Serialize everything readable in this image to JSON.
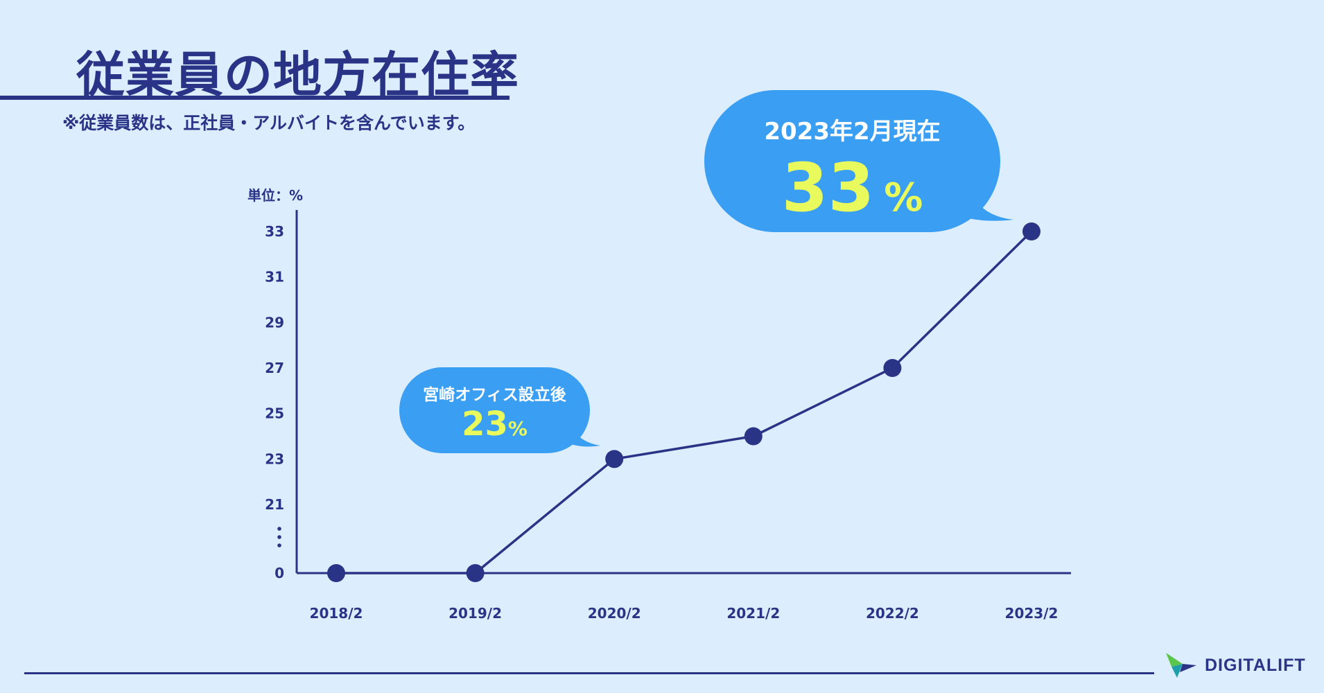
{
  "header": {
    "title": "従業員の地方在住率",
    "note": "※従業員数は、正社員・アルバイトを含んでいます。"
  },
  "chart_data": {
    "type": "line",
    "unit_label": "単位：%",
    "x": [
      "2018/2",
      "2019/2",
      "2020/2",
      "2021/2",
      "2022/2",
      "2023/2"
    ],
    "y_ticks": [
      0,
      21,
      23,
      25,
      27,
      29,
      31,
      33
    ],
    "axis_break": true,
    "series": [
      {
        "values": [
          0,
          0,
          23,
          24,
          27,
          33
        ]
      }
    ],
    "colors": {
      "line": "#2a3487",
      "bubble": "#3a9ef2",
      "highlight": "#e8fa5c"
    },
    "annotations": [
      {
        "text": "2023年2月現在",
        "value": "33",
        "unit": "%",
        "target": "2023/2"
      },
      {
        "text": "宮崎オフィス設立後",
        "value": "23",
        "unit": "%",
        "target": "2020/2"
      }
    ]
  },
  "footer": {
    "logo_text": "DIGITALIFT",
    "logo_icon": "bird-logo-icon"
  }
}
